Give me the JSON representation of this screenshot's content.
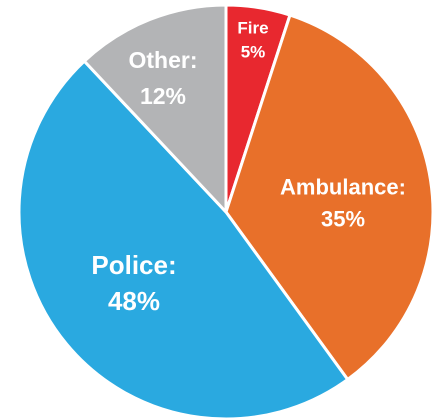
{
  "chart_data": {
    "type": "pie",
    "title": "",
    "start_angle_deg": 0,
    "direction": "clockwise",
    "legend": "none",
    "slices": [
      {
        "category": "Fire",
        "value": 5,
        "label_line1": "Fire",
        "label_line2": "5%",
        "color": "#e8282f"
      },
      {
        "category": "Ambulance",
        "value": 35,
        "label_line1": "Ambulance:",
        "label_line2": "35%",
        "color": "#e8702a"
      },
      {
        "category": "Police",
        "value": 48,
        "label_line1": "Police:",
        "label_line2": "48%",
        "color": "#2aa9e0"
      },
      {
        "category": "Other",
        "value": 12,
        "label_line1": "Other:",
        "label_line2": "12%",
        "color": "#b3b4b6"
      }
    ]
  }
}
